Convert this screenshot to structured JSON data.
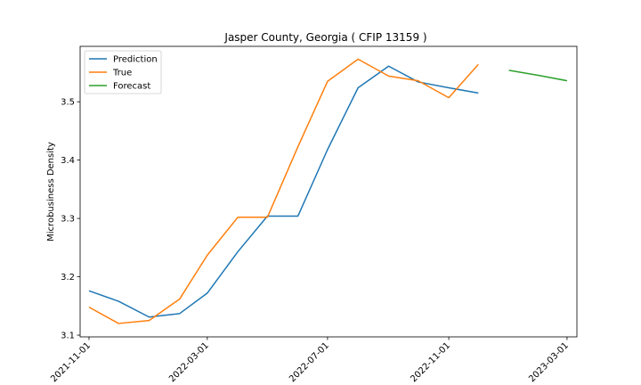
{
  "chart_data": {
    "type": "line",
    "title": "Jasper County, Georgia ( CFIP 13159 )",
    "xlabel": "",
    "ylabel": "Microbusiness Density",
    "xlim": [
      "2021-10-23",
      "2023-03-11"
    ],
    "ylim": [
      3.097,
      3.595
    ],
    "xticks": [
      "2021-11-01",
      "2022-03-01",
      "2022-07-01",
      "2022-11-01",
      "2023-03-01"
    ],
    "yticks": [
      3.1,
      3.2,
      3.3,
      3.4,
      3.5
    ],
    "legend": "upper left",
    "grid": false,
    "series": [
      {
        "name": "Prediction",
        "color": "#1f77b4",
        "x": [
          "2021-11-01",
          "2021-12-01",
          "2022-01-01",
          "2022-02-01",
          "2022-03-01",
          "2022-04-01",
          "2022-05-01",
          "2022-06-01",
          "2022-07-01",
          "2022-08-01",
          "2022-09-01",
          "2022-10-01",
          "2022-11-01",
          "2022-12-01"
        ],
        "y": [
          3.176,
          3.158,
          3.131,
          3.137,
          3.172,
          3.243,
          3.304,
          3.304,
          3.418,
          3.524,
          3.561,
          3.534,
          3.524,
          3.515
        ]
      },
      {
        "name": "True",
        "color": "#ff7f0e",
        "x": [
          "2021-11-01",
          "2021-12-01",
          "2022-01-01",
          "2022-02-01",
          "2022-03-01",
          "2022-04-01",
          "2022-05-01",
          "2022-06-01",
          "2022-07-01",
          "2022-08-01",
          "2022-09-01",
          "2022-10-01",
          "2022-11-01",
          "2022-12-01"
        ],
        "y": [
          3.148,
          3.12,
          3.125,
          3.162,
          3.237,
          3.302,
          3.302,
          3.423,
          3.535,
          3.573,
          3.544,
          3.536,
          3.507,
          3.564
        ]
      },
      {
        "name": "Forecast",
        "color": "#2ca02c",
        "x": [
          "2023-01-01",
          "2023-02-01",
          "2023-03-01"
        ],
        "y": [
          3.554,
          3.545,
          3.536
        ]
      }
    ]
  }
}
